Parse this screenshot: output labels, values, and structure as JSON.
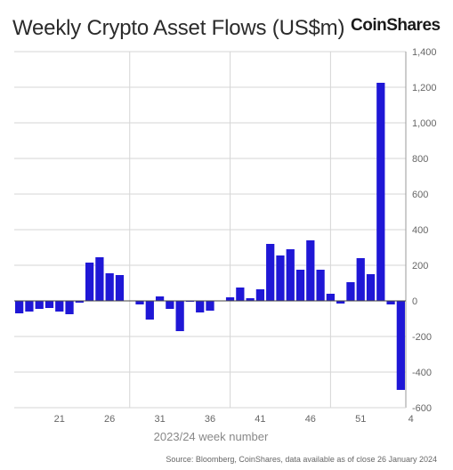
{
  "header": {
    "title": "Weekly Crypto Asset Flows (US$m)",
    "brand": "CoinShares"
  },
  "footer": {
    "source": "Source: Bloomberg, CoinShares, data available as of close 26 January 2024"
  },
  "colors": {
    "bar": "#1f17d6",
    "grid": "#d6d6d6",
    "axis": "#999999"
  },
  "chart_data": {
    "type": "bar",
    "title": "Weekly Crypto Asset Flows (US$m)",
    "xlabel": "2023/24 week number",
    "ylabel": "",
    "ylim": [
      -600,
      1400
    ],
    "yticks": [
      "-600",
      "-400",
      "-200",
      "0",
      "200",
      "400",
      "600",
      "800",
      "1,000",
      "1,200",
      "1,400"
    ],
    "ytick_values": [
      -600,
      -400,
      -200,
      0,
      200,
      400,
      600,
      800,
      1000,
      1200,
      1400
    ],
    "xtick_labels": [
      "21",
      "26",
      "31",
      "36",
      "41",
      "46",
      "51",
      "4"
    ],
    "xtick_indices": [
      4,
      9,
      14,
      19,
      24,
      29,
      34,
      39
    ],
    "grid": true,
    "y_axis_position": "right",
    "values": [
      -70,
      -60,
      -45,
      -40,
      -60,
      -75,
      -10,
      215,
      245,
      155,
      145,
      0,
      -20,
      -105,
      25,
      -45,
      -170,
      -5,
      -65,
      -55,
      0,
      20,
      75,
      15,
      65,
      320,
      255,
      290,
      175,
      340,
      175,
      40,
      -15,
      105,
      240,
      150,
      1225,
      -20,
      -500
    ]
  }
}
